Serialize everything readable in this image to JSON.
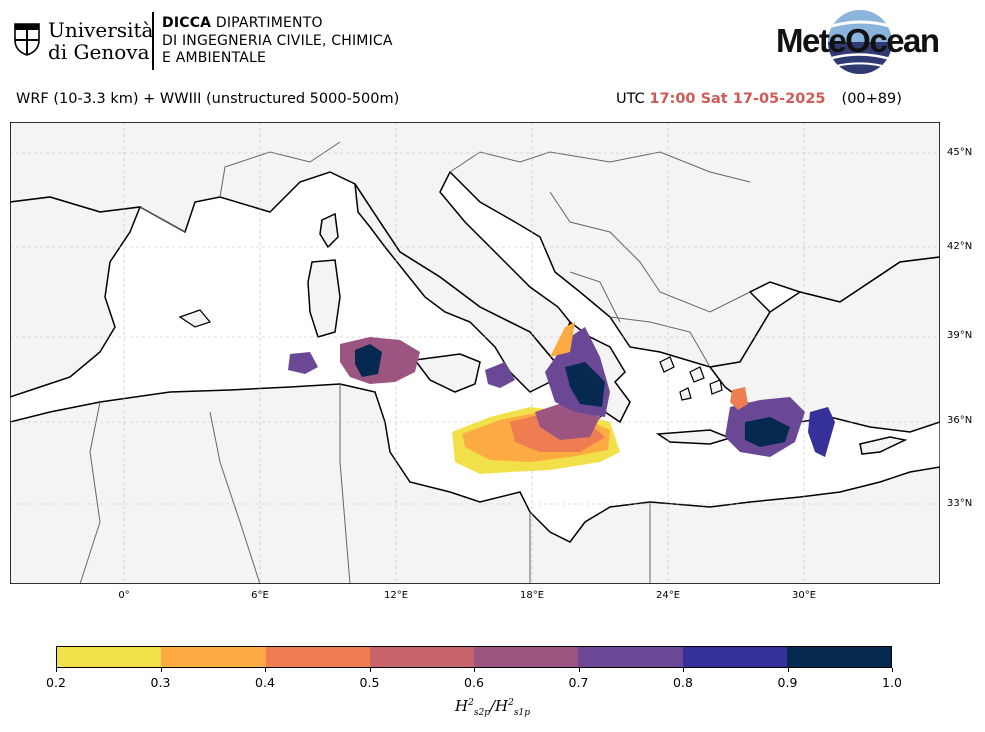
{
  "header": {
    "university": {
      "line1": "Università",
      "line2": "di Genova"
    },
    "department": {
      "strong": "DICCA",
      "line1_rest": " DIPARTIMENTO",
      "line2": "DI INGEGNERIA CIVILE, CHIMICA",
      "line3": "E AMBIENTALE"
    },
    "brand": "MeteOcean"
  },
  "subtitle": {
    "model": "WRF (10-3.3 km) + WWIII (unstructured 5000-500m)",
    "utc_label": "UTC",
    "time": "17:00 Sat 17-05-2025",
    "lead": "(00+89)"
  },
  "map": {
    "lat_ticks": [
      "45°N",
      "42°N",
      "39°N",
      "36°N",
      "33°N"
    ],
    "lon_ticks": [
      "0°",
      "6°E",
      "12°E",
      "18°E",
      "24°E",
      "30°E"
    ],
    "land_color": "#f4f4f4",
    "coast_color": "#000000",
    "border_color": "#666666"
  },
  "colorbar": {
    "ticks": [
      "0.2",
      "0.3",
      "0.4",
      "0.5",
      "0.6",
      "0.7",
      "0.8",
      "0.9",
      "1.0"
    ],
    "colors": [
      "#f1e04a",
      "#fbab42",
      "#ee7d52",
      "#c8646c",
      "#9c5480",
      "#6b4896",
      "#36309a",
      "#05294f"
    ],
    "label": "H²s2p / H²s1p"
  }
}
